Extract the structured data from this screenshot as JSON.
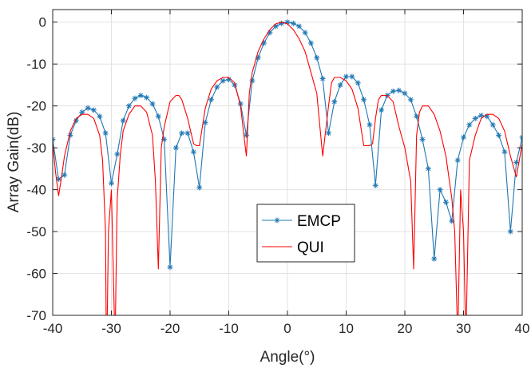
{
  "chart_data": {
    "type": "line",
    "xlabel": "Angle(°)",
    "ylabel": "Array Gain(dB)",
    "xlim": [
      -40,
      40
    ],
    "ylim": [
      -70,
      3
    ],
    "xticks": [
      "-40",
      "-30",
      "-20",
      "-10",
      "0",
      "10",
      "20",
      "30",
      "40"
    ],
    "yticks": [
      "0",
      "-10",
      "-20",
      "-30",
      "-40",
      "-50",
      "-60",
      "-70"
    ],
    "grid": true,
    "legend_position": "lower-center",
    "series": [
      {
        "name": "EMCP",
        "color": "#1f77b4",
        "marker": "asterisk",
        "x": [
          -40,
          -39,
          -38,
          -37,
          -36,
          -35,
          -34,
          -33,
          -32,
          -31,
          -30,
          -29,
          -28,
          -27,
          -26,
          -25,
          -24,
          -23,
          -22,
          -21,
          -20,
          -19,
          -18,
          -17,
          -16,
          -15,
          -14,
          -13,
          -12,
          -11,
          -10,
          -9,
          -8,
          -7,
          -6,
          -5,
          -4,
          -3,
          -2,
          -1,
          0,
          1,
          2,
          3,
          4,
          5,
          6,
          7,
          8,
          9,
          10,
          11,
          12,
          13,
          14,
          15,
          16,
          17,
          18,
          19,
          20,
          21,
          22,
          23,
          24,
          25,
          26,
          27,
          28,
          29,
          30,
          31,
          32,
          33,
          34,
          35,
          36,
          37,
          38,
          39,
          40
        ],
        "y": [
          -28,
          -37.5,
          -36.5,
          -27,
          -23.5,
          -21.5,
          -20.5,
          -21,
          -22.5,
          -26.5,
          -38.5,
          -31.5,
          -23.5,
          -20,
          -18.2,
          -17.5,
          -18,
          -19.5,
          -22.5,
          -28,
          -58.5,
          -30,
          -26.5,
          -26.5,
          -31,
          -39.5,
          -24,
          -18.5,
          -15.5,
          -14,
          -13.7,
          -15,
          -19.5,
          -27,
          -14,
          -8.5,
          -5,
          -2.5,
          -1,
          -0.3,
          0,
          -0.3,
          -1,
          -2.5,
          -5,
          -8.5,
          -13.5,
          -26.5,
          -19,
          -15,
          -13,
          -13,
          -14.5,
          -18.5,
          -24.5,
          -39,
          -21,
          -17.5,
          -16.5,
          -16.3,
          -17,
          -18.5,
          -22.5,
          -28,
          -35,
          -56.5,
          -40,
          -43,
          -47.5,
          -33,
          -27.5,
          -24.5,
          -23,
          -22.3,
          -22.5,
          -24.5,
          -27,
          -31,
          -50,
          -33.5,
          -27.5
        ]
      },
      {
        "name": "QUI",
        "color": "#ff0000",
        "marker": "none",
        "x": [
          -40,
          -39.5,
          -39,
          -38.5,
          -38,
          -37,
          -36,
          -35,
          -34,
          -33,
          -32,
          -31.5,
          -31,
          -30.9,
          -30.7,
          -30.5,
          -30,
          -29.5,
          -29.3,
          -29.1,
          -29,
          -28.5,
          -28,
          -27,
          -26,
          -25,
          -24,
          -23,
          -22.5,
          -22,
          -21.5,
          -21,
          -20,
          -19,
          -18.5,
          -18,
          -17,
          -16,
          -15.5,
          -15,
          -14,
          -13,
          -12,
          -11,
          -10,
          -9,
          -8,
          -7.5,
          -7,
          -6.5,
          -6,
          -5,
          -4,
          -3,
          -2,
          -1,
          0,
          1,
          2,
          3,
          4,
          5,
          6,
          6.5,
          7,
          7.5,
          8,
          9,
          10,
          11,
          12,
          13,
          14,
          14.5,
          15,
          15.5,
          16,
          17,
          18,
          19,
          20,
          21,
          21.5,
          22,
          22.5,
          23,
          24,
          25,
          26,
          27,
          28,
          28.5,
          28.9,
          29,
          29.1,
          29.5,
          30,
          30.3,
          30.5,
          31,
          32,
          33,
          34,
          35,
          36,
          37,
          38,
          39,
          40
        ],
        "y": [
          -29,
          -36,
          -41.5,
          -37,
          -32,
          -26,
          -23,
          -22,
          -22,
          -23,
          -27,
          -33,
          -50,
          -70,
          -70,
          -50,
          -40,
          -70,
          -70,
          -50,
          -42,
          -32,
          -26,
          -22,
          -20,
          -20,
          -21.5,
          -27,
          -38,
          -59,
          -30,
          -25,
          -19,
          -17.5,
          -17.5,
          -18.5,
          -23,
          -29,
          -29.5,
          -29.5,
          -20.5,
          -16,
          -14,
          -13.2,
          -13.2,
          -14.5,
          -20,
          -26,
          -32,
          -17,
          -12,
          -7,
          -4,
          -1.8,
          -0.4,
          0,
          -0.4,
          -1.8,
          -4,
          -7,
          -12,
          -17,
          -32,
          -26,
          -20,
          -14.5,
          -13.2,
          -13.2,
          -14,
          -16,
          -20.5,
          -29.5,
          -29.5,
          -29,
          -23,
          -18.5,
          -17.5,
          -17.5,
          -19,
          -25,
          -30,
          -38,
          -59,
          -27,
          -21.5,
          -20,
          -20,
          -22,
          -26,
          -32,
          -42,
          -50,
          -70,
          -70,
          -70,
          -40,
          -50,
          -70,
          -70,
          -33,
          -27,
          -23,
          -22,
          -22,
          -23,
          -26,
          -32,
          -37,
          -29
        ]
      }
    ]
  }
}
